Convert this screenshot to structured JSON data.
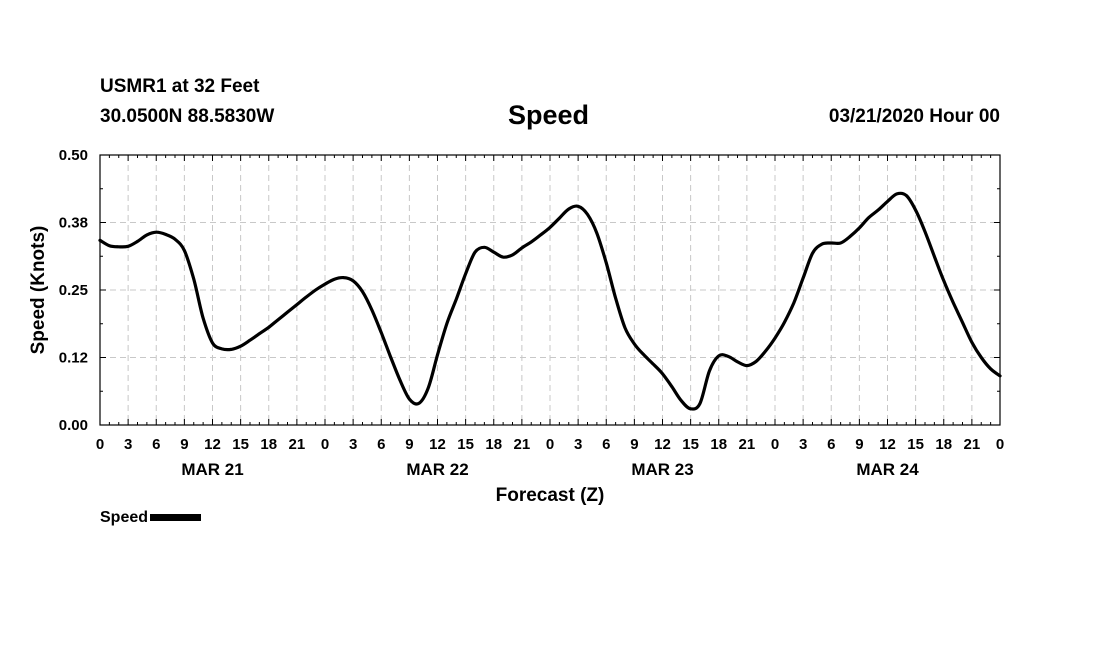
{
  "header": {
    "station": "USMR1 at 32 Feet",
    "coords": "30.0500N 88.5830W",
    "title": "Speed",
    "run": "03/21/2020 Hour 00"
  },
  "legend": {
    "label": "Speed"
  },
  "chart_data": {
    "type": "line",
    "title": "Speed",
    "xlabel": "Forecast (Z)",
    "ylabel": "Speed (Knots)",
    "xlim": [
      0,
      96
    ],
    "ylim": [
      0,
      0.5
    ],
    "grid": true,
    "legend_position": "bottom-left",
    "y_ticks": [
      0.0,
      0.125,
      0.25,
      0.375,
      0.5
    ],
    "y_tick_labels": [
      "0.00",
      "0.12",
      "0.25",
      "0.38",
      "0.50"
    ],
    "x_ticks": [
      0,
      3,
      6,
      9,
      12,
      15,
      18,
      21,
      24,
      27,
      30,
      33,
      36,
      39,
      42,
      45,
      48,
      51,
      54,
      57,
      60,
      63,
      66,
      69,
      72,
      75,
      78,
      81,
      84,
      87,
      90,
      93,
      96
    ],
    "x_tick_labels": [
      "0",
      "3",
      "6",
      "9",
      "12",
      "15",
      "18",
      "21",
      "0",
      "3",
      "6",
      "9",
      "12",
      "15",
      "18",
      "21",
      "0",
      "3",
      "6",
      "9",
      "12",
      "15",
      "18",
      "21",
      "0",
      "3",
      "6",
      "9",
      "12",
      "15",
      "18",
      "21",
      "0"
    ],
    "date_labels": [
      {
        "label": "MAR 21",
        "hour": 12
      },
      {
        "label": "MAR 22",
        "hour": 36
      },
      {
        "label": "MAR 23",
        "hour": 60
      },
      {
        "label": "MAR 24",
        "hour": 84
      }
    ],
    "series": [
      {
        "name": "Speed",
        "color": "#000000",
        "x": [
          0,
          1,
          2,
          3,
          4,
          5,
          6,
          7,
          8,
          9,
          10,
          11,
          12,
          13,
          14,
          15,
          16,
          17,
          18,
          19,
          20,
          21,
          22,
          23,
          24,
          25,
          26,
          27,
          28,
          29,
          30,
          31,
          32,
          33,
          34,
          35,
          36,
          37,
          38,
          39,
          40,
          41,
          42,
          43,
          44,
          45,
          46,
          47,
          48,
          49,
          50,
          51,
          52,
          53,
          54,
          55,
          56,
          57,
          58,
          59,
          60,
          61,
          62,
          63,
          64,
          65,
          66,
          67,
          68,
          69,
          70,
          71,
          72,
          73,
          74,
          75,
          76,
          77,
          78,
          79,
          80,
          81,
          82,
          83,
          84,
          85,
          86,
          87,
          88,
          89,
          90,
          91,
          92,
          93,
          94,
          95,
          96
        ],
        "values": [
          0.342,
          0.332,
          0.33,
          0.331,
          0.34,
          0.352,
          0.357,
          0.353,
          0.344,
          0.323,
          0.27,
          0.198,
          0.152,
          0.141,
          0.14,
          0.146,
          0.157,
          0.169,
          0.181,
          0.195,
          0.209,
          0.223,
          0.237,
          0.25,
          0.261,
          0.27,
          0.273,
          0.267,
          0.247,
          0.213,
          0.171,
          0.126,
          0.083,
          0.048,
          0.04,
          0.068,
          0.13,
          0.188,
          0.233,
          0.28,
          0.32,
          0.329,
          0.32,
          0.311,
          0.315,
          0.328,
          0.339,
          0.352,
          0.366,
          0.383,
          0.4,
          0.405,
          0.39,
          0.355,
          0.3,
          0.235,
          0.18,
          0.15,
          0.13,
          0.113,
          0.095,
          0.071,
          0.045,
          0.03,
          0.04,
          0.1,
          0.128,
          0.127,
          0.117,
          0.11,
          0.118,
          0.137,
          0.161,
          0.19,
          0.226,
          0.272,
          0.318,
          0.335,
          0.337,
          0.337,
          0.349,
          0.365,
          0.384,
          0.398,
          0.414,
          0.428,
          0.425,
          0.398,
          0.358,
          0.312,
          0.267,
          0.227,
          0.19,
          0.153,
          0.125,
          0.104,
          0.091
        ]
      }
    ]
  }
}
